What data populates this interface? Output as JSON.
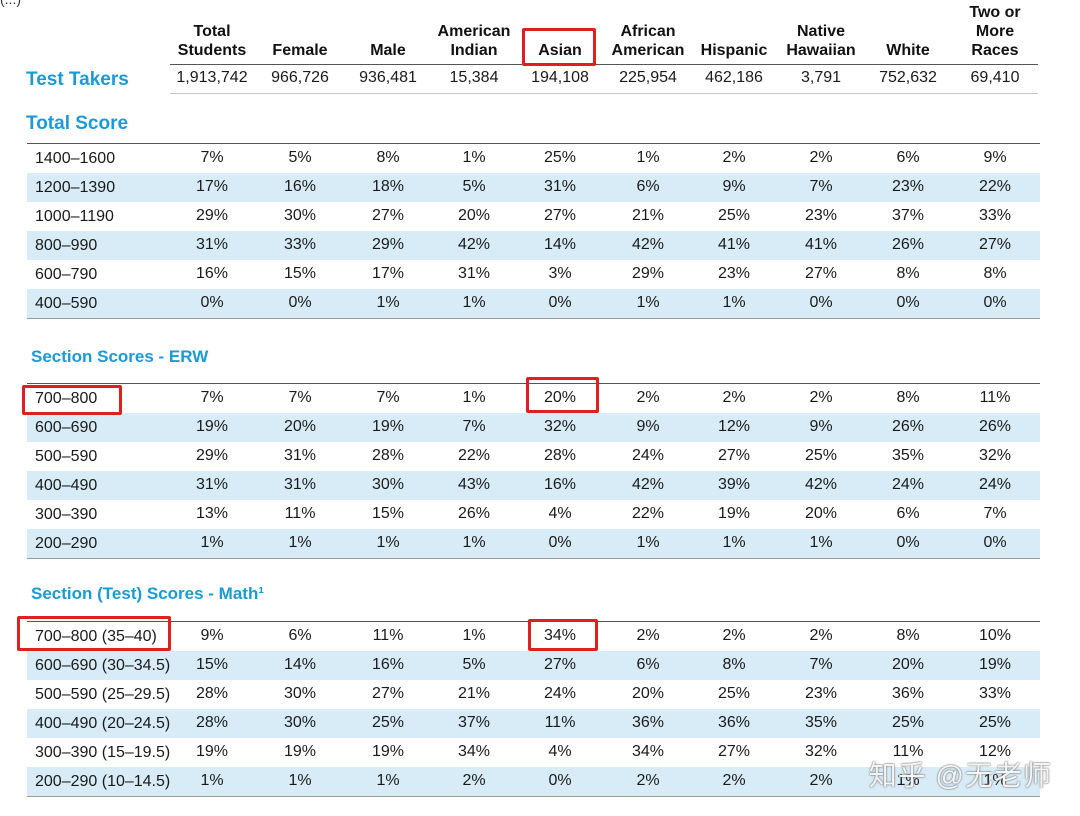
{
  "corner_text": "(...)",
  "columns": [
    {
      "lines": [
        "Total",
        "Students"
      ]
    },
    {
      "lines": [
        "Female"
      ]
    },
    {
      "lines": [
        "Male"
      ]
    },
    {
      "lines": [
        "American",
        "Indian"
      ]
    },
    {
      "lines": [
        "Asian"
      ]
    },
    {
      "lines": [
        "African",
        "American"
      ]
    },
    {
      "lines": [
        "Hispanic"
      ]
    },
    {
      "lines": [
        "Native",
        "Hawaiian"
      ]
    },
    {
      "lines": [
        "White"
      ]
    },
    {
      "lines": [
        "Two or",
        "More",
        "Races"
      ]
    }
  ],
  "test_takers": {
    "label": "Test Takers",
    "values": [
      "1,913,742",
      "966,726",
      "936,481",
      "15,384",
      "194,108",
      "225,954",
      "462,186",
      "3,791",
      "752,632",
      "69,410"
    ]
  },
  "sections": [
    {
      "title": "Total Score",
      "rows": [
        {
          "label": "1400–1600",
          "values": [
            "7%",
            "5%",
            "8%",
            "1%",
            "25%",
            "1%",
            "2%",
            "2%",
            "6%",
            "9%"
          ]
        },
        {
          "label": "1200–1390",
          "values": [
            "17%",
            "16%",
            "18%",
            "5%",
            "31%",
            "6%",
            "9%",
            "7%",
            "23%",
            "22%"
          ]
        },
        {
          "label": "1000–1190",
          "values": [
            "29%",
            "30%",
            "27%",
            "20%",
            "27%",
            "21%",
            "25%",
            "23%",
            "37%",
            "33%"
          ]
        },
        {
          "label": "800–990",
          "values": [
            "31%",
            "33%",
            "29%",
            "42%",
            "14%",
            "42%",
            "41%",
            "41%",
            "26%",
            "27%"
          ]
        },
        {
          "label": "600–790",
          "values": [
            "16%",
            "15%",
            "17%",
            "31%",
            "3%",
            "29%",
            "23%",
            "27%",
            "8%",
            "8%"
          ]
        },
        {
          "label": "400–590",
          "values": [
            "0%",
            "0%",
            "1%",
            "1%",
            "0%",
            "1%",
            "1%",
            "0%",
            "0%",
            "0%"
          ]
        }
      ]
    },
    {
      "title": "Section Scores - ERW",
      "rows": [
        {
          "label": "700–800",
          "values": [
            "7%",
            "7%",
            "7%",
            "1%",
            "20%",
            "2%",
            "2%",
            "2%",
            "8%",
            "11%"
          ]
        },
        {
          "label": "600–690",
          "values": [
            "19%",
            "20%",
            "19%",
            "7%",
            "32%",
            "9%",
            "12%",
            "9%",
            "26%",
            "26%"
          ]
        },
        {
          "label": "500–590",
          "values": [
            "29%",
            "31%",
            "28%",
            "22%",
            "28%",
            "24%",
            "27%",
            "25%",
            "35%",
            "32%"
          ]
        },
        {
          "label": "400–490",
          "values": [
            "31%",
            "31%",
            "30%",
            "43%",
            "16%",
            "42%",
            "39%",
            "42%",
            "24%",
            "24%"
          ]
        },
        {
          "label": "300–390",
          "values": [
            "13%",
            "11%",
            "15%",
            "26%",
            "4%",
            "22%",
            "19%",
            "20%",
            "6%",
            "7%"
          ]
        },
        {
          "label": "200–290",
          "values": [
            "1%",
            "1%",
            "1%",
            "1%",
            "0%",
            "1%",
            "1%",
            "1%",
            "0%",
            "0%"
          ]
        }
      ]
    },
    {
      "title": "Section (Test) Scores - Math¹",
      "rows": [
        {
          "label": "700–800 (35–40)",
          "values": [
            "9%",
            "6%",
            "11%",
            "1%",
            "34%",
            "2%",
            "2%",
            "2%",
            "8%",
            "10%"
          ]
        },
        {
          "label": "600–690 (30–34.5)",
          "values": [
            "15%",
            "14%",
            "16%",
            "5%",
            "27%",
            "6%",
            "8%",
            "7%",
            "20%",
            "19%"
          ]
        },
        {
          "label": "500–590 (25–29.5)",
          "values": [
            "28%",
            "30%",
            "27%",
            "21%",
            "24%",
            "20%",
            "25%",
            "23%",
            "36%",
            "33%"
          ]
        },
        {
          "label": "400–490 (20–24.5)",
          "values": [
            "28%",
            "30%",
            "25%",
            "37%",
            "11%",
            "36%",
            "36%",
            "35%",
            "25%",
            "25%"
          ]
        },
        {
          "label": "300–390 (15–19.5)",
          "values": [
            "19%",
            "19%",
            "19%",
            "34%",
            "4%",
            "34%",
            "27%",
            "32%",
            "11%",
            "12%"
          ]
        },
        {
          "label": "200–290 (10–14.5)",
          "values": [
            "1%",
            "1%",
            "1%",
            "2%",
            "0%",
            "2%",
            "2%",
            "2%",
            "1%",
            "1%"
          ]
        }
      ]
    }
  ],
  "watermark": "知乎 @无老师",
  "colors": {
    "accent": "#1a9bd7",
    "row_alt": "#d8ecf8",
    "highlight": "#e02020"
  }
}
